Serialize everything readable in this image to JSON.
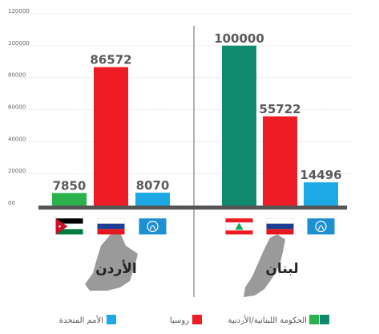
{
  "chart_data": {
    "type": "bar",
    "ylim": [
      0,
      120000
    ],
    "y_ticks": [
      0,
      20000,
      40000,
      60000,
      80000,
      100000,
      120000
    ],
    "y_tick_labels": [
      "00",
      "20000",
      "40000",
      "60000",
      "80000",
      "100000",
      "120000"
    ],
    "grid": true,
    "legend_placement": "bottom",
    "series": [
      {
        "name": "الحكومة اللبنانية/الأردنية",
        "color": "#2bb24c",
        "color_alt": "#0f8a6e"
      },
      {
        "name": "روسيا",
        "color": "#ee1c25"
      },
      {
        "name": "الأمم المتحدة",
        "color": "#1ca9e6"
      }
    ],
    "groups": [
      {
        "name": "الأردن",
        "values": [
          7850,
          86572,
          8070
        ],
        "value_labels": [
          "7850",
          "86572",
          "8070"
        ],
        "flags": [
          "jordan-flag",
          "russia-flag",
          "un-flag"
        ],
        "gov_color": "#2bb24c"
      },
      {
        "name": "لبنان",
        "values": [
          100000,
          55722,
          14496
        ],
        "value_labels": [
          "100000",
          "55722",
          "14496"
        ],
        "flags": [
          "lebanon-flag",
          "russia-flag",
          "un-flag"
        ],
        "gov_color": "#0f8a6e"
      }
    ]
  }
}
